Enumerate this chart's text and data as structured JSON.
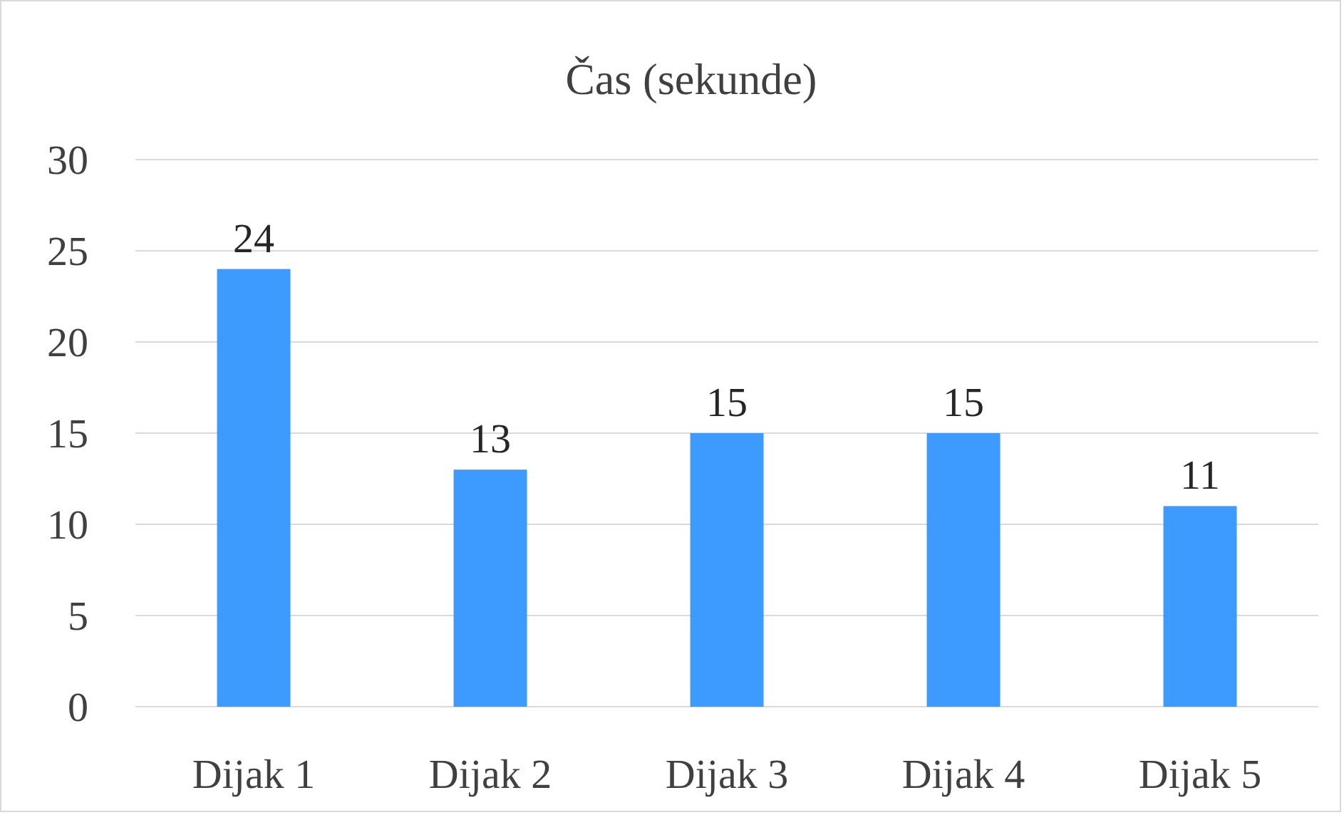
{
  "chart_data": {
    "type": "bar",
    "title": "Čas (sekunde)",
    "categories": [
      "Dijak 1",
      "Dijak 2",
      "Dijak 3",
      "Dijak 4",
      "Dijak 5"
    ],
    "values": [
      24,
      13,
      15,
      15,
      11
    ],
    "color": "#3d9bff",
    "ylim": [
      0,
      30
    ],
    "yticks": [
      0,
      5,
      10,
      15,
      20,
      25,
      30
    ],
    "grid": "y",
    "data_labels": true
  }
}
